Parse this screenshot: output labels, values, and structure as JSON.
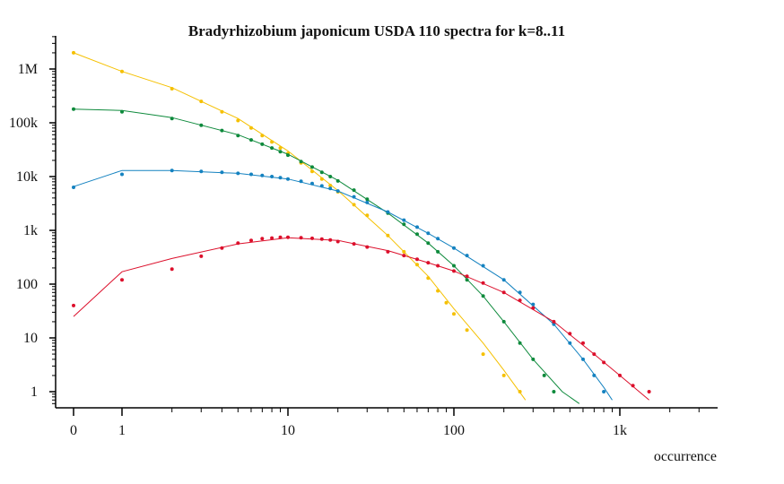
{
  "chart_data": {
    "type": "scatter",
    "title": "Bradyrhizobium japonicum USDA 110 spectra for k=8..11",
    "xlabel": "occurrence",
    "ylabel": "",
    "x_scale": "log1p",
    "y_scale": "log",
    "xlim": [
      0,
      4000
    ],
    "ylim": [
      0.5,
      5000000
    ],
    "x_ticks": [
      {
        "value": 0,
        "label": "0"
      },
      {
        "value": 1,
        "label": "1"
      },
      {
        "value": 10,
        "label": "10"
      },
      {
        "value": 100,
        "label": "100"
      },
      {
        "value": 1000,
        "label": "1k"
      }
    ],
    "y_ticks": [
      {
        "value": 1,
        "label": "1"
      },
      {
        "value": 10,
        "label": "10"
      },
      {
        "value": 100,
        "label": "100"
      },
      {
        "value": 1000,
        "label": "1k"
      },
      {
        "value": 10000,
        "label": "10k"
      },
      {
        "value": 100000,
        "label": "100k"
      },
      {
        "value": 1000000,
        "label": "1M"
      }
    ],
    "grid": false,
    "legend": "none",
    "series": [
      {
        "color": "#f5c000",
        "points": [
          [
            0,
            2000000
          ],
          [
            1,
            900000
          ],
          [
            2,
            430000
          ],
          [
            3,
            250000
          ],
          [
            4,
            160000
          ],
          [
            5,
            110000
          ],
          [
            6,
            80000
          ],
          [
            7,
            58000
          ],
          [
            8,
            44000
          ],
          [
            9,
            34000
          ],
          [
            10,
            27000
          ],
          [
            12,
            18000
          ],
          [
            14,
            12500
          ],
          [
            16,
            9000
          ],
          [
            18,
            6800
          ],
          [
            20,
            5200
          ],
          [
            25,
            3000
          ],
          [
            30,
            1900
          ],
          [
            40,
            800
          ],
          [
            50,
            400
          ],
          [
            60,
            230
          ],
          [
            70,
            130
          ],
          [
            80,
            75
          ],
          [
            90,
            45
          ],
          [
            100,
            28
          ],
          [
            120,
            14
          ],
          [
            150,
            5
          ],
          [
            200,
            2
          ],
          [
            250,
            1
          ]
        ],
        "fit": [
          [
            0,
            2000000
          ],
          [
            1,
            900000
          ],
          [
            2,
            450000
          ],
          [
            5,
            120000
          ],
          [
            10,
            30000
          ],
          [
            20,
            5500
          ],
          [
            40,
            800
          ],
          [
            70,
            140
          ],
          [
            100,
            35
          ],
          [
            150,
            8
          ],
          [
            200,
            2.5
          ],
          [
            270,
            0.7
          ]
        ]
      },
      {
        "color": "#0e8a3c",
        "points": [
          [
            0,
            180000
          ],
          [
            1,
            160000
          ],
          [
            2,
            120000
          ],
          [
            3,
            90000
          ],
          [
            4,
            72000
          ],
          [
            5,
            58000
          ],
          [
            6,
            48000
          ],
          [
            7,
            40000
          ],
          [
            8,
            34000
          ],
          [
            9,
            29000
          ],
          [
            10,
            25000
          ],
          [
            12,
            19000
          ],
          [
            14,
            15000
          ],
          [
            16,
            12000
          ],
          [
            18,
            10000
          ],
          [
            20,
            8300
          ],
          [
            25,
            5600
          ],
          [
            30,
            3800
          ],
          [
            40,
            2100
          ],
          [
            50,
            1300
          ],
          [
            60,
            850
          ],
          [
            70,
            580
          ],
          [
            80,
            400
          ],
          [
            100,
            220
          ],
          [
            120,
            120
          ],
          [
            150,
            60
          ],
          [
            200,
            20
          ],
          [
            250,
            8
          ],
          [
            300,
            4
          ],
          [
            350,
            2
          ],
          [
            400,
            1
          ]
        ],
        "fit": [
          [
            0,
            180000
          ],
          [
            1,
            170000
          ],
          [
            2,
            125000
          ],
          [
            5,
            60000
          ],
          [
            10,
            26000
          ],
          [
            20,
            8500
          ],
          [
            40,
            2100
          ],
          [
            70,
            580
          ],
          [
            100,
            220
          ],
          [
            150,
            60
          ],
          [
            200,
            20
          ],
          [
            300,
            4
          ],
          [
            450,
            1
          ],
          [
            570,
            0.6
          ]
        ]
      },
      {
        "color": "#1482c0",
        "points": [
          [
            0,
            6300
          ],
          [
            1,
            11000
          ],
          [
            2,
            13000
          ],
          [
            3,
            12500
          ],
          [
            4,
            12000
          ],
          [
            5,
            11500
          ],
          [
            6,
            11000
          ],
          [
            7,
            10500
          ],
          [
            8,
            10000
          ],
          [
            9,
            9500
          ],
          [
            10,
            9000
          ],
          [
            12,
            8200
          ],
          [
            14,
            7400
          ],
          [
            16,
            6700
          ],
          [
            18,
            6000
          ],
          [
            20,
            5400
          ],
          [
            25,
            4200
          ],
          [
            30,
            3300
          ],
          [
            40,
            2200
          ],
          [
            50,
            1550
          ],
          [
            60,
            1150
          ],
          [
            70,
            880
          ],
          [
            80,
            700
          ],
          [
            100,
            470
          ],
          [
            120,
            340
          ],
          [
            150,
            220
          ],
          [
            200,
            120
          ],
          [
            250,
            70
          ],
          [
            300,
            42
          ],
          [
            400,
            18
          ],
          [
            500,
            8
          ],
          [
            600,
            4
          ],
          [
            700,
            2
          ],
          [
            800,
            1
          ]
        ],
        "fit": [
          [
            0,
            6500
          ],
          [
            1,
            13000
          ],
          [
            2,
            13000
          ],
          [
            5,
            11500
          ],
          [
            10,
            9000
          ],
          [
            20,
            5400
          ],
          [
            40,
            2200
          ],
          [
            70,
            880
          ],
          [
            100,
            470
          ],
          [
            200,
            120
          ],
          [
            400,
            18
          ],
          [
            600,
            4
          ],
          [
            800,
            1.2
          ],
          [
            900,
            0.7
          ]
        ]
      },
      {
        "color": "#dc0f2b",
        "points": [
          [
            0,
            40
          ],
          [
            1,
            120
          ],
          [
            2,
            190
          ],
          [
            3,
            330
          ],
          [
            4,
            470
          ],
          [
            5,
            580
          ],
          [
            6,
            650
          ],
          [
            7,
            700
          ],
          [
            8,
            720
          ],
          [
            9,
            740
          ],
          [
            10,
            740
          ],
          [
            12,
            730
          ],
          [
            14,
            710
          ],
          [
            16,
            690
          ],
          [
            18,
            660
          ],
          [
            20,
            620
          ],
          [
            25,
            560
          ],
          [
            30,
            490
          ],
          [
            40,
            400
          ],
          [
            50,
            340
          ],
          [
            60,
            290
          ],
          [
            70,
            250
          ],
          [
            80,
            220
          ],
          [
            100,
            175
          ],
          [
            120,
            140
          ],
          [
            150,
            105
          ],
          [
            200,
            70
          ],
          [
            250,
            50
          ],
          [
            300,
            36
          ],
          [
            400,
            20
          ],
          [
            500,
            12
          ],
          [
            600,
            8
          ],
          [
            700,
            5
          ],
          [
            800,
            3.5
          ],
          [
            1000,
            2
          ],
          [
            1200,
            1.3
          ],
          [
            1500,
            1
          ]
        ],
        "fit": [
          [
            0,
            25
          ],
          [
            1,
            170
          ],
          [
            2,
            300
          ],
          [
            5,
            560
          ],
          [
            10,
            730
          ],
          [
            20,
            650
          ],
          [
            40,
            420
          ],
          [
            70,
            250
          ],
          [
            100,
            175
          ],
          [
            200,
            70
          ],
          [
            400,
            20
          ],
          [
            700,
            5
          ],
          [
            1000,
            2
          ],
          [
            1500,
            0.7
          ]
        ]
      }
    ]
  }
}
